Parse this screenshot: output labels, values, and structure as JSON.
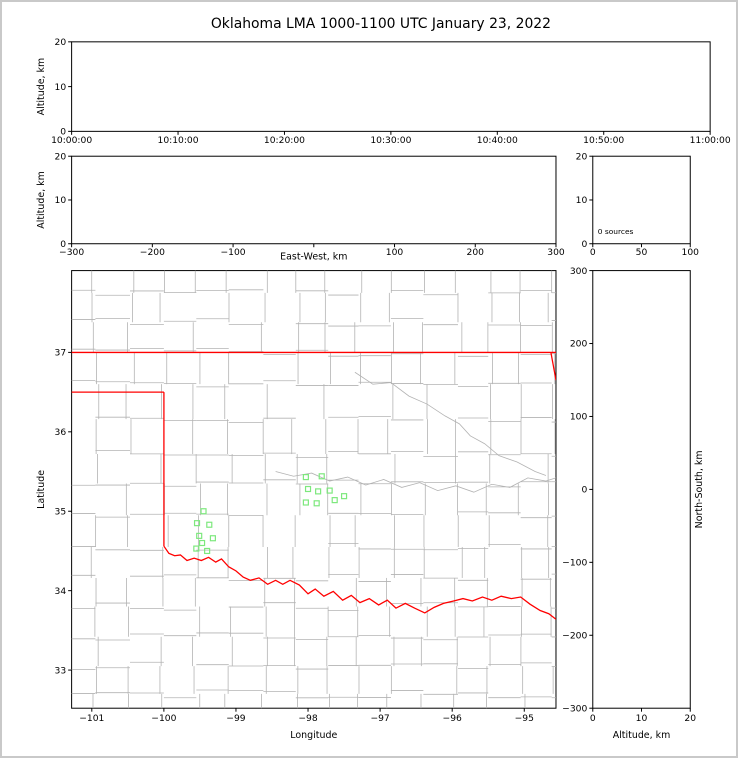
{
  "title": "Oklahoma LMA 1000-1100 UTC January 23, 2022",
  "colors": {
    "background": "#ffffff",
    "frame_border": "#c9c9c9",
    "axis": "#000000",
    "state_border": "#ff0000",
    "county_lines": "#b3b3b3",
    "source_marker": "#7de87d"
  },
  "chart_data": {
    "type": "scatter",
    "title": "Oklahoma LMA 1000-1100 UTC January 23, 2022",
    "panels": {
      "time_height": {
        "ylabel": "Altitude, km",
        "ylim": [
          0,
          20
        ],
        "yticks": [
          0,
          10,
          20
        ],
        "xticks": [
          "10:00:00",
          "10:10:00",
          "10:20:00",
          "10:30:00",
          "10:40:00",
          "10:50:00",
          "11:00:00"
        ],
        "points": []
      },
      "ew_height": {
        "xlabel": "East-West, km",
        "ylabel": "Altitude, km",
        "xlim": [
          -300,
          300
        ],
        "ylim": [
          0,
          20
        ],
        "xticks": [
          -300,
          -200,
          -100,
          0,
          100,
          200,
          300
        ],
        "yticks": [
          0,
          10,
          20
        ],
        "points": []
      },
      "alt_hist": {
        "annotation": "0 sources",
        "xlim": [
          0,
          100
        ],
        "ylim": [
          0,
          20
        ],
        "xticks": [
          0,
          50,
          100
        ],
        "yticks": [
          0,
          10,
          20
        ]
      },
      "plan_view": {
        "xlabel": "Longitude",
        "ylabel": "Latitude",
        "xlim": [
          -101.28,
          -94.56
        ],
        "ylim": [
          32.52,
          38.03
        ],
        "xticks": [
          -101,
          -100,
          -99,
          -98,
          -97,
          -96,
          -95
        ],
        "yticks": [
          33,
          34,
          35,
          36,
          37
        ],
        "sources_lonlat": [
          [
            -99.45,
            35.0
          ],
          [
            -99.54,
            34.85
          ],
          [
            -99.37,
            34.83
          ],
          [
            -99.51,
            34.69
          ],
          [
            -99.32,
            34.66
          ],
          [
            -99.47,
            34.6
          ],
          [
            -99.55,
            34.53
          ],
          [
            -99.4,
            34.5
          ],
          [
            -98.03,
            35.43
          ],
          [
            -97.81,
            35.44
          ],
          [
            -98.0,
            35.28
          ],
          [
            -97.86,
            35.25
          ],
          [
            -97.7,
            35.26
          ],
          [
            -98.03,
            35.11
          ],
          [
            -97.88,
            35.1
          ],
          [
            -97.63,
            35.14
          ],
          [
            -97.5,
            35.19
          ]
        ]
      },
      "ns_height": {
        "xlabel": "Altitude, km",
        "ylabel_right": "North-South, km",
        "xlim": [
          0,
          20
        ],
        "ylim": [
          -300,
          300
        ],
        "xticks": [
          0,
          10,
          20
        ],
        "yticks": [
          300,
          200,
          100,
          0,
          -100,
          -200,
          -300
        ],
        "points": []
      }
    },
    "map_overlays": {
      "state_border": [
        {
          "name": "kansas-oklahoma-line",
          "points": [
            [
              -101.28,
              37.0
            ],
            [
              -94.43,
              37.0
            ]
          ]
        },
        {
          "name": "panhandle-south-line",
          "points": [
            [
              -101.28,
              36.5
            ],
            [
              -100.0,
              36.5
            ]
          ]
        },
        {
          "name": "texas-west-line",
          "points": [
            [
              -100.0,
              36.5
            ],
            [
              -100.0,
              34.56
            ]
          ]
        },
        {
          "name": "missouri-arkansas-line",
          "points": [
            [
              -94.63,
              37.0
            ],
            [
              -94.56,
              36.65
            ]
          ]
        },
        {
          "name": "red-river-line",
          "points": [
            [
              -100.0,
              34.56
            ],
            [
              -99.93,
              34.47
            ],
            [
              -99.85,
              34.44
            ],
            [
              -99.77,
              34.45
            ],
            [
              -99.68,
              34.38
            ],
            [
              -99.58,
              34.41
            ],
            [
              -99.48,
              34.38
            ],
            [
              -99.38,
              34.42
            ],
            [
              -99.28,
              34.36
            ],
            [
              -99.2,
              34.4
            ],
            [
              -99.1,
              34.3
            ],
            [
              -99.0,
              34.25
            ],
            [
              -98.9,
              34.17
            ],
            [
              -98.8,
              34.13
            ],
            [
              -98.68,
              34.16
            ],
            [
              -98.56,
              34.08
            ],
            [
              -98.45,
              34.13
            ],
            [
              -98.35,
              34.08
            ],
            [
              -98.25,
              34.13
            ],
            [
              -98.12,
              34.07
            ],
            [
              -98.0,
              33.96
            ],
            [
              -97.9,
              34.02
            ],
            [
              -97.78,
              33.93
            ],
            [
              -97.65,
              33.99
            ],
            [
              -97.52,
              33.88
            ],
            [
              -97.4,
              33.94
            ],
            [
              -97.28,
              33.85
            ],
            [
              -97.15,
              33.9
            ],
            [
              -97.02,
              33.82
            ],
            [
              -96.9,
              33.88
            ],
            [
              -96.78,
              33.78
            ],
            [
              -96.65,
              33.84
            ],
            [
              -96.52,
              33.78
            ],
            [
              -96.38,
              33.72
            ],
            [
              -96.25,
              33.79
            ],
            [
              -96.12,
              33.84
            ],
            [
              -95.98,
              33.87
            ],
            [
              -95.85,
              33.9
            ],
            [
              -95.72,
              33.87
            ],
            [
              -95.58,
              33.92
            ],
            [
              -95.45,
              33.88
            ],
            [
              -95.32,
              33.93
            ],
            [
              -95.18,
              33.9
            ],
            [
              -95.05,
              33.92
            ],
            [
              -94.92,
              33.83
            ],
            [
              -94.78,
              33.75
            ],
            [
              -94.66,
              33.71
            ],
            [
              -94.56,
              33.64
            ]
          ]
        }
      ],
      "rivers": [
        {
          "name": "canadian-river",
          "points": [
            [
              -98.45,
              35.5
            ],
            [
              -98.2,
              35.44
            ],
            [
              -97.95,
              35.48
            ],
            [
              -97.7,
              35.38
            ],
            [
              -97.45,
              35.43
            ],
            [
              -97.2,
              35.33
            ],
            [
              -96.95,
              35.4
            ],
            [
              -96.7,
              35.3
            ],
            [
              -96.45,
              35.36
            ],
            [
              -96.2,
              35.26
            ],
            [
              -95.95,
              35.32
            ],
            [
              -95.7,
              35.24
            ],
            [
              -95.45,
              35.34
            ],
            [
              -95.2,
              35.3
            ],
            [
              -94.95,
              35.42
            ],
            [
              -94.7,
              35.38
            ],
            [
              -94.56,
              35.42
            ]
          ]
        },
        {
          "name": "arkansas-river",
          "points": [
            [
              -97.35,
              36.75
            ],
            [
              -97.1,
              36.6
            ],
            [
              -96.85,
              36.62
            ],
            [
              -96.6,
              36.45
            ],
            [
              -96.35,
              36.35
            ],
            [
              -96.1,
              36.2
            ],
            [
              -95.9,
              36.1
            ],
            [
              -95.75,
              35.95
            ],
            [
              -95.55,
              35.85
            ],
            [
              -95.35,
              35.7
            ],
            [
              -95.1,
              35.62
            ],
            [
              -94.85,
              35.5
            ],
            [
              -94.7,
              35.45
            ]
          ]
        }
      ]
    }
  }
}
